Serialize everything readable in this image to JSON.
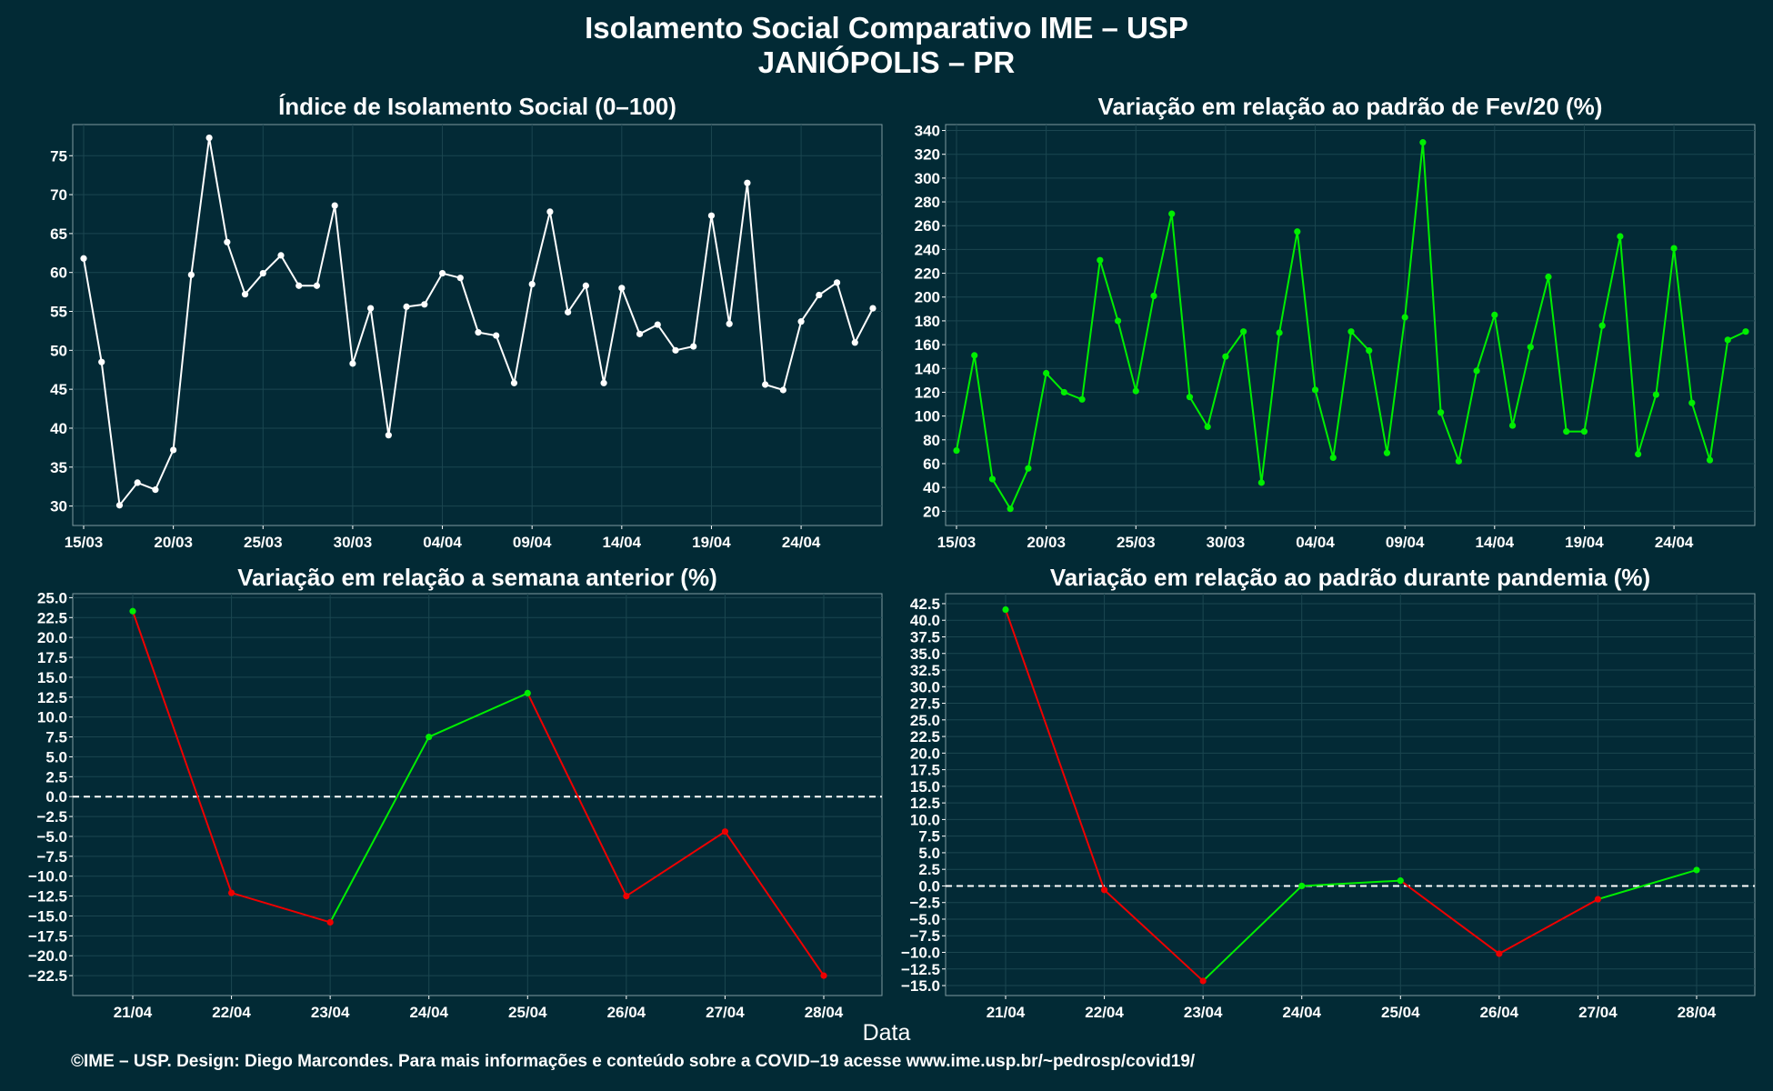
{
  "title_line1": "Isolamento Social Comparativo IME – USP",
  "title_line2": "JANIÓPOLIS – PR",
  "x_axis_label": "Data",
  "footer": "©IME – USP. Design: Diego Marcondes. Para mais informações e conteúdo sobre a COVID–19 acesse www.ime.usp.br/~pedrosp/covid19/",
  "colors": {
    "background": "#022a35",
    "panel": "#032a36",
    "grid": "#1b4650",
    "white_line": "#ffffff",
    "green": "#00ee00",
    "red": "#ee0000"
  },
  "chart_data": [
    {
      "id": "isolamento",
      "type": "line",
      "title": "Índice de Isolamento Social (0–100)",
      "x_tick_labels": [
        "15/03",
        "20/03",
        "25/03",
        "30/03",
        "04/04",
        "09/04",
        "14/04",
        "19/04",
        "24/04"
      ],
      "x_start": "15/03",
      "ylim": [
        27.5,
        79
      ],
      "y_ticks": [
        30,
        35,
        40,
        45,
        50,
        55,
        60,
        65,
        70,
        75
      ],
      "series": [
        {
          "color": "white",
          "values": [
            61.8,
            48.5,
            30.1,
            33.0,
            32.1,
            37.2,
            59.7,
            77.3,
            63.9,
            57.2,
            59.9,
            62.2,
            58.3,
            58.3,
            68.6,
            48.3,
            55.4,
            39.1,
            55.6,
            55.9,
            59.9,
            59.3,
            52.3,
            51.9,
            45.8,
            58.5,
            67.8,
            54.9,
            58.3,
            45.8,
            58.0,
            52.1,
            53.3,
            50.0,
            50.5,
            67.3,
            53.4,
            71.5,
            45.6,
            44.9,
            53.7,
            57.1,
            58.7,
            51.0,
            55.4
          ]
        }
      ]
    },
    {
      "id": "fev20",
      "type": "line",
      "title": "Variação em relação ao padrão de Fev/20 (%)",
      "x_tick_labels": [
        "15/03",
        "20/03",
        "25/03",
        "30/03",
        "04/04",
        "09/04",
        "14/04",
        "19/04",
        "24/04"
      ],
      "x_start": "15/03",
      "ylim": [
        8,
        345
      ],
      "y_ticks": [
        20,
        40,
        60,
        80,
        100,
        120,
        140,
        160,
        180,
        200,
        220,
        240,
        260,
        280,
        300,
        320,
        340
      ],
      "series": [
        {
          "color": "green",
          "values": [
            71,
            151,
            47,
            22,
            56,
            136,
            120,
            114,
            231,
            180,
            121,
            201,
            270,
            116,
            91,
            150,
            171,
            44,
            170,
            255,
            122,
            65,
            171,
            155,
            69,
            183,
            330,
            103,
            62,
            138,
            185,
            92,
            158,
            217,
            87,
            87,
            176,
            251,
            68,
            118,
            241,
            111,
            63,
            164,
            171
          ]
        }
      ]
    },
    {
      "id": "semana_anterior",
      "type": "line",
      "title": "Variação em relação a semana anterior (%)",
      "categories": [
        "21/04",
        "22/04",
        "23/04",
        "24/04",
        "25/04",
        "26/04",
        "27/04",
        "28/04"
      ],
      "ylim": [
        -25,
        25.5
      ],
      "y_ticks": [
        -22.5,
        -20,
        -17.5,
        -15,
        -12.5,
        -10,
        -7.5,
        -5,
        -2.5,
        0,
        2.5,
        5,
        7.5,
        10,
        12.5,
        15,
        17.5,
        20,
        22.5,
        25
      ],
      "reference_line": 0,
      "series": [
        {
          "values": [
            23.3,
            -12.1,
            -15.8,
            7.5,
            13.0,
            -12.5,
            -4.4,
            -22.5
          ],
          "colors": [
            "green",
            "red",
            "red",
            "green",
            "green",
            "red",
            "red",
            "red"
          ]
        }
      ]
    },
    {
      "id": "durante_pandemia",
      "type": "line",
      "title": "Variação em relação ao padrão durante pandemia (%)",
      "categories": [
        "21/04",
        "22/04",
        "23/04",
        "24/04",
        "25/04",
        "26/04",
        "27/04",
        "28/04"
      ],
      "ylim": [
        -16.5,
        44
      ],
      "y_ticks": [
        -15,
        -12.5,
        -10,
        -7.5,
        -5,
        -2.5,
        0,
        2.5,
        5,
        7.5,
        10,
        12.5,
        15,
        17.5,
        20,
        22.5,
        25,
        27.5,
        30,
        32.5,
        35,
        37.5,
        40,
        42.5
      ],
      "reference_line": 0,
      "series": [
        {
          "values": [
            41.6,
            -0.6,
            -14.3,
            0.0,
            0.8,
            -10.2,
            -2.0,
            2.4
          ],
          "colors": [
            "green",
            "red",
            "red",
            "green",
            "green",
            "red",
            "red",
            "green"
          ]
        }
      ]
    }
  ]
}
